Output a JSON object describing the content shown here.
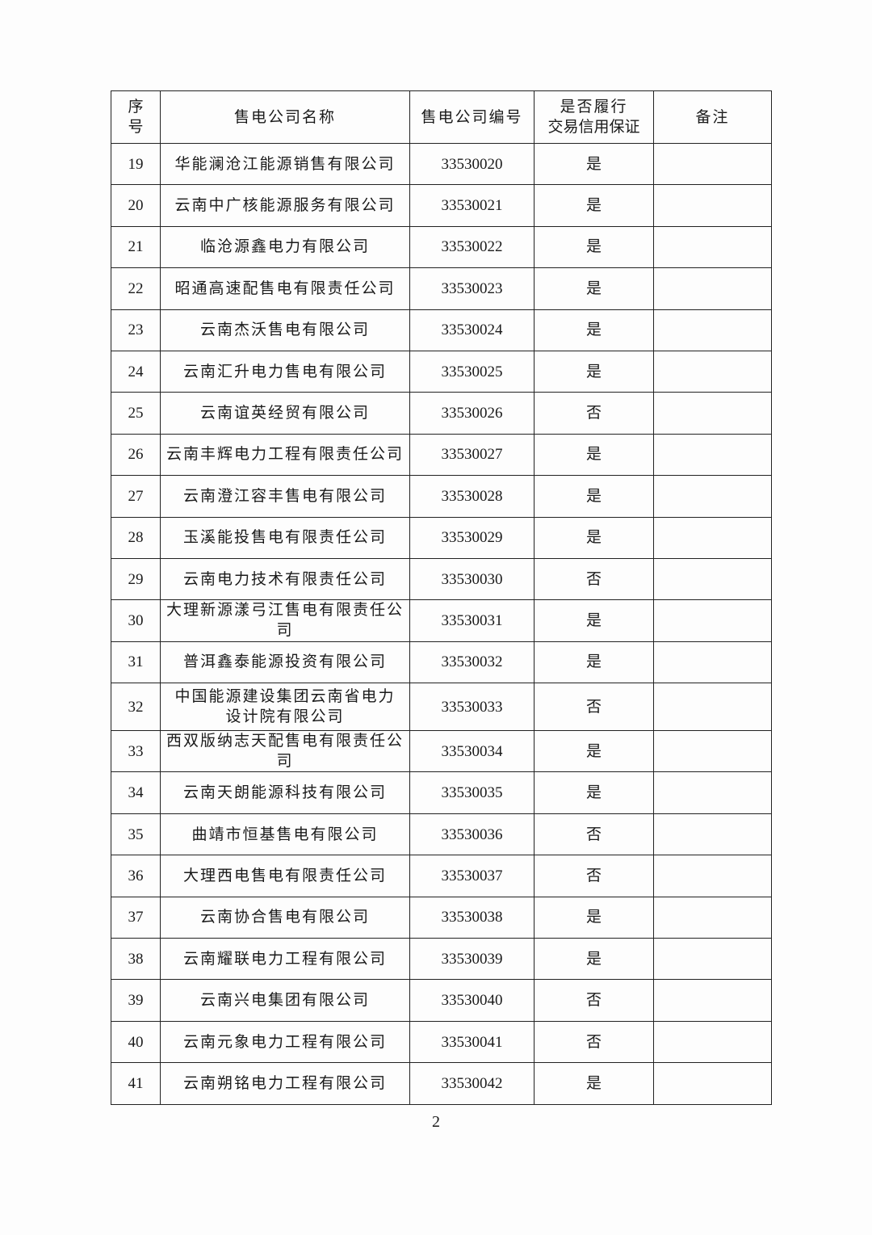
{
  "table": {
    "headers": [
      "序号",
      "售电公司名称",
      "售电公司编号",
      "是否履行交易信用保证",
      "备注"
    ],
    "header_lines": {
      "seq": [
        "序",
        "号"
      ],
      "guarantee": [
        "是否履行",
        "交易信用保证"
      ]
    },
    "rows": [
      {
        "seq": "19",
        "name": "华能澜沧江能源销售有限公司",
        "code": "33530020",
        "guarantee": "是",
        "remark": ""
      },
      {
        "seq": "20",
        "name": "云南中广核能源服务有限公司",
        "code": "33530021",
        "guarantee": "是",
        "remark": ""
      },
      {
        "seq": "21",
        "name": "临沧源鑫电力有限公司",
        "code": "33530022",
        "guarantee": "是",
        "remark": ""
      },
      {
        "seq": "22",
        "name": "昭通高速配售电有限责任公司",
        "code": "33530023",
        "guarantee": "是",
        "remark": ""
      },
      {
        "seq": "23",
        "name": "云南杰沃售电有限公司",
        "code": "33530024",
        "guarantee": "是",
        "remark": ""
      },
      {
        "seq": "24",
        "name": "云南汇升电力售电有限公司",
        "code": "33530025",
        "guarantee": "是",
        "remark": ""
      },
      {
        "seq": "25",
        "name": "云南谊英经贸有限公司",
        "code": "33530026",
        "guarantee": "否",
        "remark": ""
      },
      {
        "seq": "26",
        "name": "云南丰辉电力工程有限责任公司",
        "code": "33530027",
        "guarantee": "是",
        "remark": ""
      },
      {
        "seq": "27",
        "name": "云南澄江容丰售电有限公司",
        "code": "33530028",
        "guarantee": "是",
        "remark": ""
      },
      {
        "seq": "28",
        "name": "玉溪能投售电有限责任公司",
        "code": "33530029",
        "guarantee": "是",
        "remark": ""
      },
      {
        "seq": "29",
        "name": "云南电力技术有限责任公司",
        "code": "33530030",
        "guarantee": "否",
        "remark": ""
      },
      {
        "seq": "30",
        "name": "大理新源漾弓江售电有限责任公司",
        "code": "33530031",
        "guarantee": "是",
        "remark": ""
      },
      {
        "seq": "31",
        "name": "普洱鑫泰能源投资有限公司",
        "code": "33530032",
        "guarantee": "是",
        "remark": ""
      },
      {
        "seq": "32",
        "name": "中国能源建设集团云南省电力设计院有限公司",
        "name_lines": [
          "中国能源建设集团云南省电力",
          "设计院有限公司"
        ],
        "code": "33530033",
        "guarantee": "否",
        "remark": ""
      },
      {
        "seq": "33",
        "name": "西双版纳志天配售电有限责任公司",
        "code": "33530034",
        "guarantee": "是",
        "remark": ""
      },
      {
        "seq": "34",
        "name": "云南天朗能源科技有限公司",
        "code": "33530035",
        "guarantee": "是",
        "remark": ""
      },
      {
        "seq": "35",
        "name": "曲靖市恒基售电有限公司",
        "code": "33530036",
        "guarantee": "否",
        "remark": ""
      },
      {
        "seq": "36",
        "name": "大理西电售电有限责任公司",
        "code": "33530037",
        "guarantee": "否",
        "remark": ""
      },
      {
        "seq": "37",
        "name": "云南协合售电有限公司",
        "code": "33530038",
        "guarantee": "是",
        "remark": ""
      },
      {
        "seq": "38",
        "name": "云南耀联电力工程有限公司",
        "code": "33530039",
        "guarantee": "是",
        "remark": ""
      },
      {
        "seq": "39",
        "name": "云南兴电集团有限公司",
        "code": "33530040",
        "guarantee": "否",
        "remark": ""
      },
      {
        "seq": "40",
        "name": "云南元象电力工程有限公司",
        "code": "33530041",
        "guarantee": "否",
        "remark": ""
      },
      {
        "seq": "41",
        "name": "云南朔铭电力工程有限公司",
        "code": "33530042",
        "guarantee": "是",
        "remark": ""
      }
    ]
  },
  "page_number": "2"
}
